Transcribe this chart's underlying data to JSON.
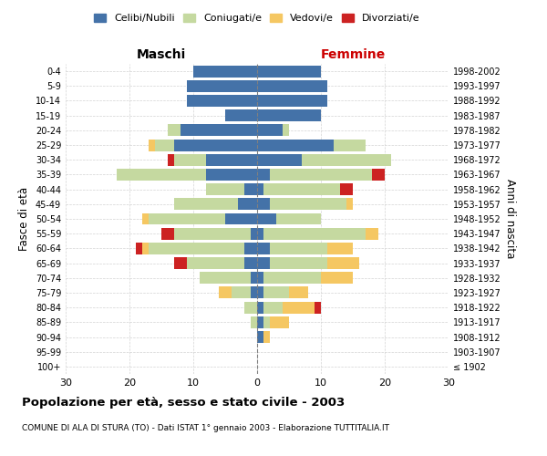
{
  "age_groups": [
    "100+",
    "95-99",
    "90-94",
    "85-89",
    "80-84",
    "75-79",
    "70-74",
    "65-69",
    "60-64",
    "55-59",
    "50-54",
    "45-49",
    "40-44",
    "35-39",
    "30-34",
    "25-29",
    "20-24",
    "15-19",
    "10-14",
    "5-9",
    "0-4"
  ],
  "birth_years": [
    "≤ 1902",
    "1903-1907",
    "1908-1912",
    "1913-1917",
    "1918-1922",
    "1923-1927",
    "1928-1932",
    "1933-1937",
    "1938-1942",
    "1943-1947",
    "1948-1952",
    "1953-1957",
    "1958-1962",
    "1963-1967",
    "1968-1972",
    "1973-1977",
    "1978-1982",
    "1983-1987",
    "1988-1992",
    "1993-1997",
    "1998-2002"
  ],
  "maschi": {
    "celibi": [
      0,
      0,
      0,
      0,
      0,
      1,
      1,
      2,
      2,
      1,
      5,
      3,
      2,
      8,
      8,
      13,
      12,
      5,
      11,
      11,
      10
    ],
    "coniugati": [
      0,
      0,
      0,
      1,
      2,
      3,
      8,
      9,
      15,
      12,
      12,
      10,
      6,
      14,
      5,
      3,
      2,
      0,
      0,
      0,
      0
    ],
    "vedovi": [
      0,
      0,
      0,
      0,
      0,
      2,
      0,
      0,
      1,
      0,
      1,
      0,
      0,
      0,
      0,
      1,
      0,
      0,
      0,
      0,
      0
    ],
    "divorziati": [
      0,
      0,
      0,
      0,
      0,
      0,
      0,
      2,
      1,
      2,
      0,
      0,
      0,
      0,
      1,
      0,
      0,
      0,
      0,
      0,
      0
    ]
  },
  "femmine": {
    "nubili": [
      0,
      0,
      1,
      1,
      1,
      1,
      1,
      2,
      2,
      1,
      3,
      2,
      1,
      2,
      7,
      12,
      4,
      10,
      11,
      11,
      10
    ],
    "coniugate": [
      0,
      0,
      0,
      1,
      3,
      4,
      9,
      9,
      9,
      16,
      7,
      12,
      12,
      16,
      14,
      5,
      1,
      0,
      0,
      0,
      0
    ],
    "vedove": [
      0,
      0,
      1,
      3,
      5,
      3,
      5,
      5,
      4,
      2,
      0,
      1,
      0,
      0,
      0,
      0,
      0,
      0,
      0,
      0,
      0
    ],
    "divorziate": [
      0,
      0,
      0,
      0,
      1,
      0,
      0,
      0,
      0,
      0,
      0,
      0,
      2,
      2,
      0,
      0,
      0,
      0,
      0,
      0,
      0
    ]
  },
  "colors": {
    "celibi": "#4472a8",
    "coniugati": "#c5d9a0",
    "vedovi": "#f5c762",
    "divorziati": "#cc2222"
  },
  "xlim": 30,
  "title": "Popolazione per età, sesso e stato civile - 2003",
  "subtitle": "COMUNE DI ALA DI STURA (TO) - Dati ISTAT 1° gennaio 2003 - Elaborazione TUTTITALIA.IT",
  "ylabel_left": "Fasce di età",
  "ylabel_right": "Anni di nascita",
  "xlabel_left": "Maschi",
  "xlabel_right": "Femmine"
}
